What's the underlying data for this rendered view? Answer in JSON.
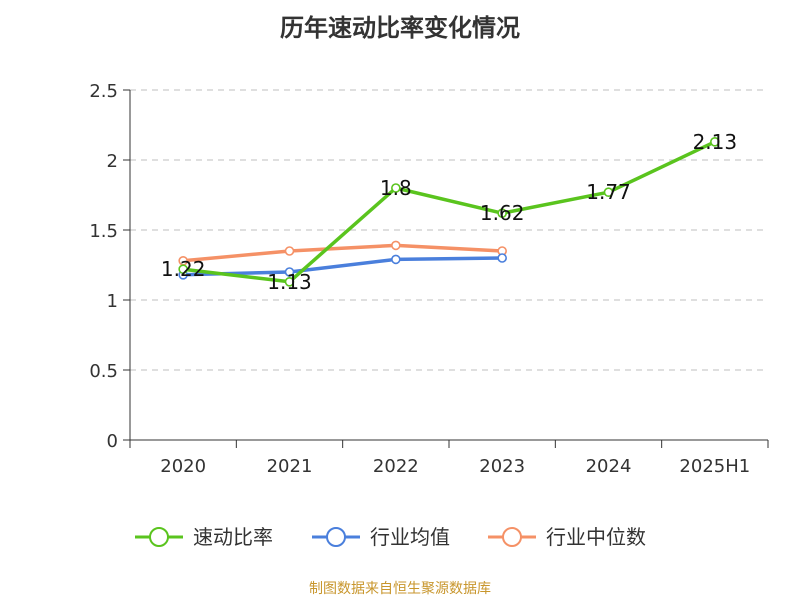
{
  "chart_data": {
    "type": "line",
    "title": "历年速动比率变化情况",
    "categories": [
      "2020",
      "2021",
      "2022",
      "2023",
      "2024",
      "2025H1"
    ],
    "ylim": [
      0,
      2.5
    ],
    "yticks": [
      "0",
      "0.5",
      "1",
      "1.5",
      "2",
      "2.5"
    ],
    "grid": true,
    "legend_position": "bottom",
    "series": [
      {
        "name": "速动比率",
        "color": "#5ac41e",
        "values": [
          1.22,
          1.13,
          1.8,
          1.62,
          1.77,
          2.13
        ],
        "labels": [
          "1.22",
          "1.13",
          "1.8",
          "1.62",
          "1.77",
          "2.13"
        ]
      },
      {
        "name": "行业均值",
        "color": "#4a7fdc",
        "values": [
          1.18,
          1.2,
          1.29,
          1.3,
          null,
          null
        ]
      },
      {
        "name": "行业中位数",
        "color": "#f59166",
        "values": [
          1.28,
          1.35,
          1.39,
          1.35,
          null,
          null
        ]
      }
    ],
    "source": "制图数据来自恒生聚源数据库"
  }
}
